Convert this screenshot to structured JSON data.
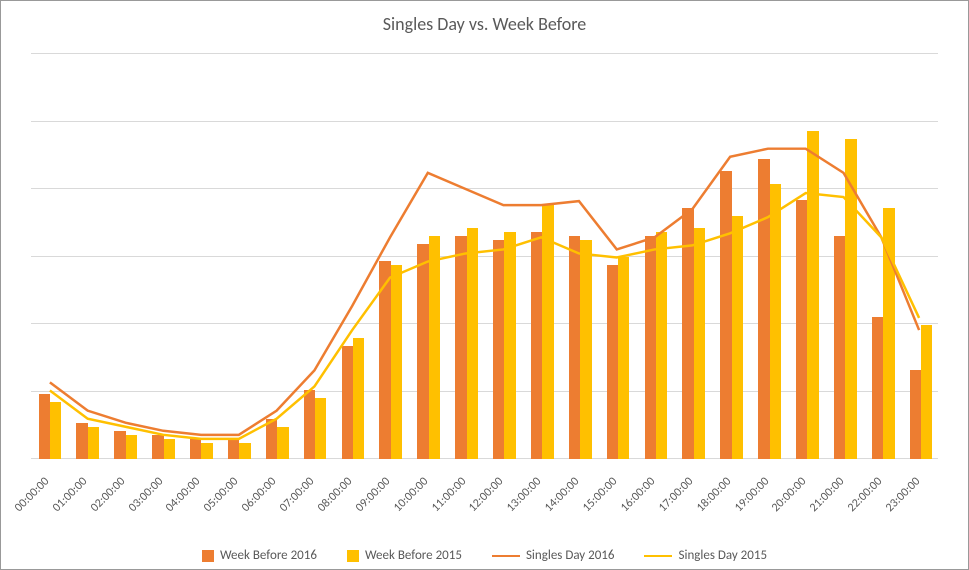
{
  "chart": {
    "type": "bar+line",
    "title": "Singles Day vs. Week Before",
    "title_fontsize": 18,
    "title_color": "#595959",
    "background_color": "#ffffff",
    "border_color": "#999999",
    "grid_color": "#d9d9d9",
    "label_color": "#595959",
    "xlabel_fontsize": 12,
    "xlabel_rotation": -45,
    "legend_fontsize": 13,
    "ylim": [
      0,
      100
    ],
    "grid_lines": [
      0,
      16.67,
      33.33,
      50,
      66.67,
      83.33,
      100
    ],
    "categories": [
      "00:00:00",
      "01:00:00",
      "02:00:00",
      "03:00:00",
      "04:00:00",
      "05:00:00",
      "06:00:00",
      "07:00:00",
      "08:00:00",
      "09:00:00",
      "10:00:00",
      "11:00:00",
      "12:00:00",
      "13:00:00",
      "14:00:00",
      "15:00:00",
      "16:00:00",
      "17:00:00",
      "18:00:00",
      "19:00:00",
      "20:00:00",
      "21:00:00",
      "22:00:00",
      "23:00:00"
    ],
    "bar_group_width_ratio": 0.6,
    "series": {
      "week_before_2016": {
        "type": "bar",
        "label": "Week Before 2016",
        "color": "#ed7d31",
        "values": [
          16,
          9,
          7,
          6,
          5,
          5,
          10,
          17,
          28,
          49,
          53,
          55,
          54,
          56,
          55,
          48,
          55,
          62,
          71,
          74,
          64,
          55,
          35,
          22
        ]
      },
      "week_before_2015": {
        "type": "bar",
        "label": "Week Before 2015",
        "color": "#ffc000",
        "values": [
          14,
          8,
          6,
          5,
          4,
          4,
          8,
          15,
          30,
          48,
          55,
          57,
          56,
          63,
          54,
          50,
          56,
          57,
          60,
          68,
          81,
          79,
          62,
          33
        ]
      },
      "singles_day_2016": {
        "type": "line",
        "label": "Singles Day 2016",
        "color": "#ed7d31",
        "line_width": 2.5,
        "values": [
          19,
          12,
          9,
          7,
          6,
          6,
          12,
          22,
          38,
          55,
          71,
          67,
          63,
          63,
          64,
          52,
          55,
          62,
          75,
          77,
          77,
          71,
          55,
          32
        ]
      },
      "singles_day_2015": {
        "type": "line",
        "label": "Singles Day 2015",
        "color": "#ffc000",
        "line_width": 2.5,
        "values": [
          17,
          10,
          8,
          6,
          5,
          5,
          10,
          18,
          32,
          45,
          49,
          51,
          52,
          55,
          51,
          50,
          52,
          53,
          56,
          60,
          66,
          65,
          55,
          35
        ]
      }
    },
    "legend_order": [
      "week_before_2016",
      "week_before_2015",
      "singles_day_2016",
      "singles_day_2015"
    ]
  }
}
